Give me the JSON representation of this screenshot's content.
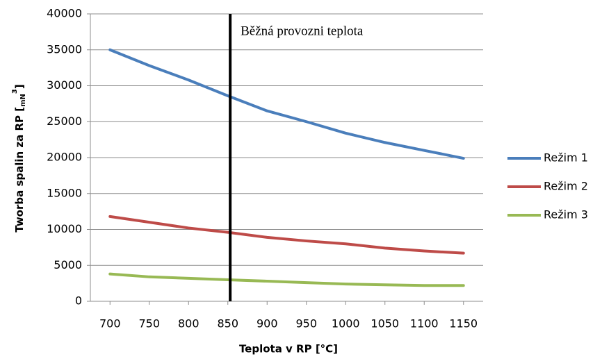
{
  "chart_data": {
    "type": "line",
    "xlabel": "Teplota v RP [°C]",
    "ylabel": [
      "Tworba spalin za RP [",
      "mN",
      "3",
      "]"
    ],
    "x": [
      700,
      750,
      800,
      850,
      900,
      950,
      1000,
      1050,
      1100,
      1150
    ],
    "xlim": [
      675,
      1175
    ],
    "xticks": [
      700,
      750,
      800,
      850,
      900,
      950,
      1000,
      1050,
      1100,
      1150
    ],
    "ylim": [
      0,
      40000
    ],
    "yticks": [
      0,
      5000,
      10000,
      15000,
      20000,
      25000,
      30000,
      35000,
      40000
    ],
    "grid": true,
    "legend": "right",
    "series": [
      {
        "name": "Režim 1",
        "color": "#4a7ebb",
        "values": [
          35000,
          32800,
          30800,
          28600,
          26500,
          25000,
          23400,
          22100,
          21000,
          19900
        ]
      },
      {
        "name": "Režim 2",
        "color": "#be4b48",
        "values": [
          11800,
          11000,
          10200,
          9600,
          8900,
          8400,
          8000,
          7400,
          7000,
          6700
        ]
      },
      {
        "name": "Režim 3",
        "color": "#98b954",
        "values": [
          3800,
          3400,
          3200,
          3000,
          2800,
          2600,
          2400,
          2300,
          2200,
          2200
        ]
      }
    ],
    "annotation": {
      "x": 853,
      "text": "Běžná provozni teplota"
    }
  }
}
